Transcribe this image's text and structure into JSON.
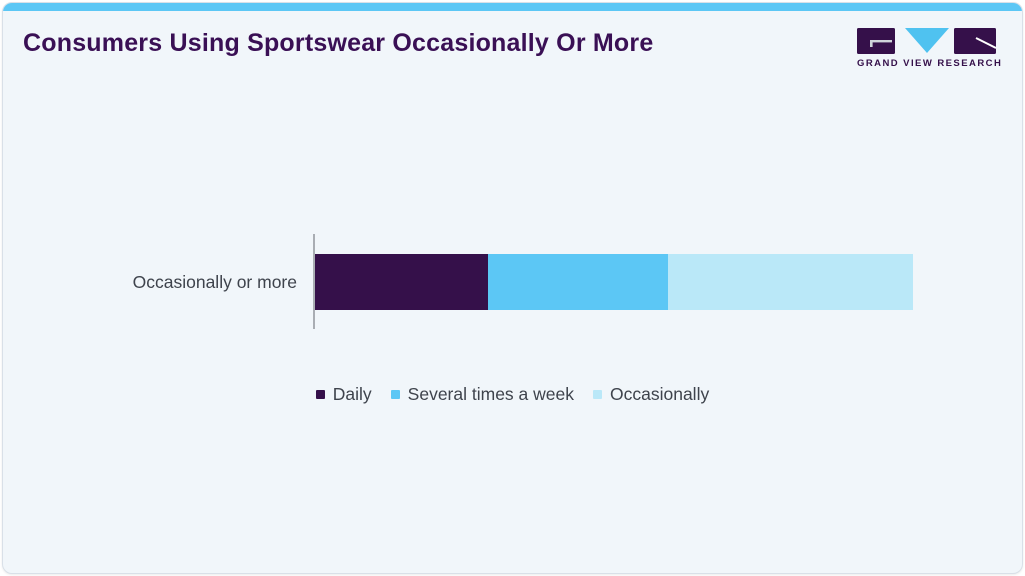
{
  "theme": {
    "card_bg": "#f1f6fa",
    "card_border": "#d9e0e8",
    "strip_blue": "#5cc7f5",
    "title_purple": "#3a1055",
    "text_gray": "#3e434c",
    "axis_gray": "#a9adb3",
    "logo_purple": "#35104a",
    "logo_blue": "#4fc2f0"
  },
  "header": {
    "title": "Consumers Using Sportswear Occasionally Or More"
  },
  "logo": {
    "name": "Grand View Research logo",
    "text": "GRAND VIEW RESEARCH"
  },
  "chart_data": {
    "type": "bar",
    "stacked": true,
    "orientation": "horizontal",
    "title": "Consumers Using Sportswear Occasionally Or More",
    "categories": [
      "Occasionally or more"
    ],
    "series": [
      {
        "name": "Daily",
        "values": [
          29
        ],
        "color": "#35104a"
      },
      {
        "name": "Several times a week",
        "values": [
          30
        ],
        "color": "#5cc7f5"
      },
      {
        "name": "Occasionally",
        "values": [
          41
        ],
        "color": "#bae8f8"
      }
    ],
    "values_estimated": true,
    "xlim": [
      0,
      100
    ],
    "xlabel": "",
    "ylabel": "",
    "gridlines": false,
    "axis_ticks_visible": false,
    "data_labels_visible": false,
    "legend": {
      "position": "bottom-center",
      "entries": [
        "Daily",
        "Several times a week",
        "Occasionally"
      ]
    }
  }
}
